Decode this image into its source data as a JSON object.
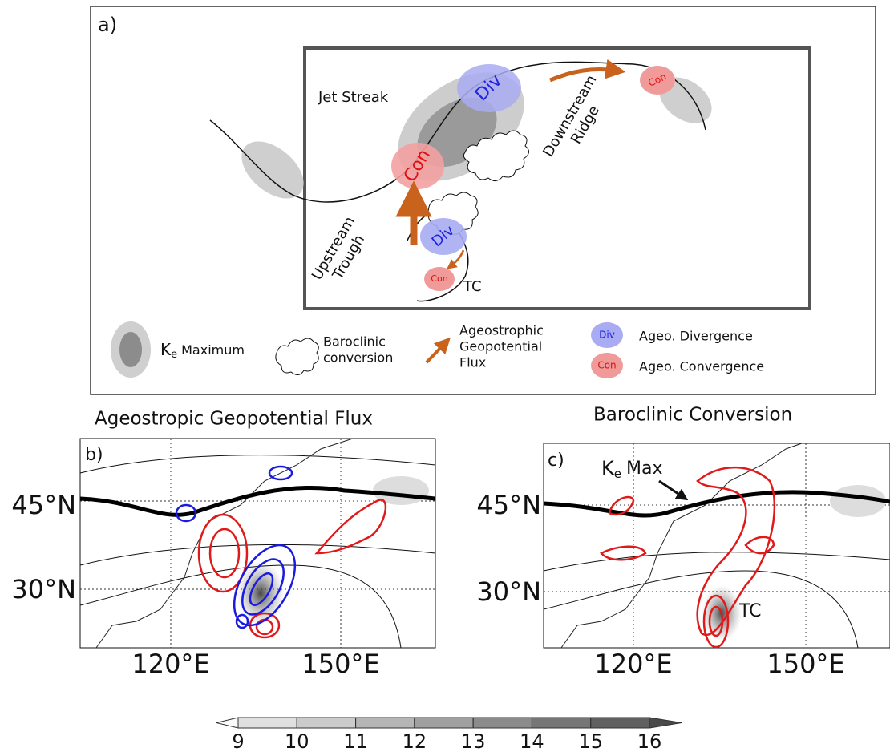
{
  "panel_a": {
    "label": "a)",
    "jet_streak": "Jet Streak",
    "downstream": [
      "Downstream",
      "Ridge"
    ],
    "upstream": [
      "Upstream",
      "Trough"
    ],
    "tc": "TC",
    "div_large": "Div",
    "con_large": "Con",
    "con_small_right": "Con",
    "div_lower": "Div",
    "con_lower": "Con",
    "legend": {
      "ke_symbol": "K",
      "ke_subscript": "e",
      "ke_text": "Maximum",
      "baroclinic": [
        "Baroclinic",
        "conversion"
      ],
      "flux": [
        "Ageostrophic",
        "Geopotential",
        "Flux"
      ],
      "div_icon": "Div",
      "div_text": "Ageo. Divergence",
      "con_icon": "Con",
      "con_text": "Ageo. Convergence"
    }
  },
  "panel_b": {
    "title": "Ageostropic Geopotential Flux",
    "label": "b)",
    "lat_labels": [
      "45°N",
      "30°N"
    ],
    "lon_labels": [
      "120°E",
      "150°E"
    ]
  },
  "panel_c": {
    "title": "Baroclinic Conversion",
    "label": "c)",
    "ke_symbol": "K",
    "ke_subscript": "e",
    "ke_text": "Max",
    "tc": "TC",
    "lat_labels": [
      "45°N",
      "30°N"
    ],
    "lon_labels": [
      "120°E",
      "150°E"
    ]
  },
  "colorbar": {
    "ticks": [
      9,
      10,
      11,
      12,
      13,
      14,
      15,
      16
    ]
  }
}
